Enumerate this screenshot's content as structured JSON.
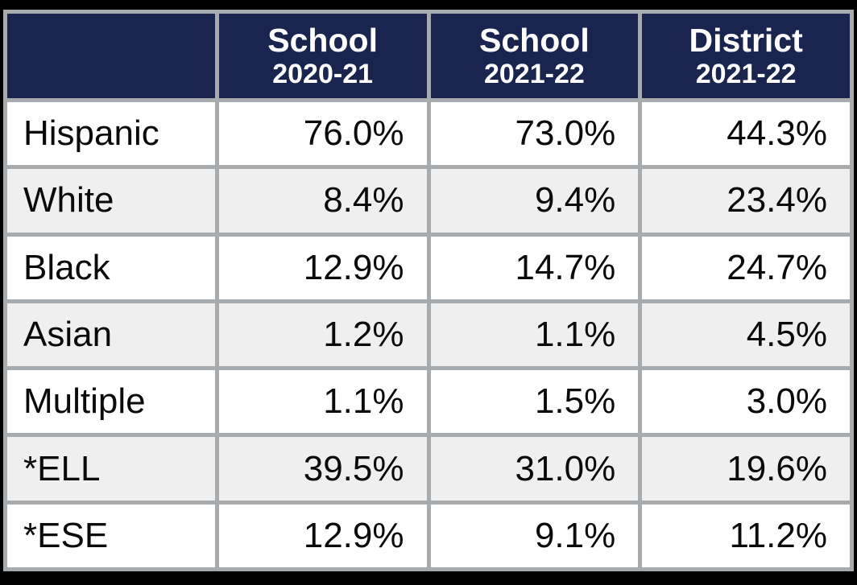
{
  "colors": {
    "header_background": "#1a254f",
    "header_text": "#ffffff",
    "grid_border": "#a8abad",
    "stripe_row_background": "#efefef",
    "plain_row_background": "#ffffff",
    "body_text": "#0a0a0a",
    "outer_frame": "#000000"
  },
  "table": {
    "corner_label": "",
    "columns": [
      {
        "title": "School",
        "year": "2020-21"
      },
      {
        "title": "School",
        "year": "2021-22"
      },
      {
        "title": "District",
        "year": "2021-22"
      }
    ],
    "rows": [
      {
        "label": "Hispanic",
        "values": [
          "76.0%",
          "73.0%",
          "44.3%"
        ]
      },
      {
        "label": "White",
        "values": [
          "8.4%",
          "9.4%",
          "23.4%"
        ]
      },
      {
        "label": "Black",
        "values": [
          "12.9%",
          "14.7%",
          "24.7%"
        ]
      },
      {
        "label": "Asian",
        "values": [
          "1.2%",
          "1.1%",
          "4.5%"
        ]
      },
      {
        "label": "Multiple",
        "values": [
          "1.1%",
          "1.5%",
          "3.0%"
        ]
      },
      {
        "label": "*ELL",
        "values": [
          "39.5%",
          "31.0%",
          "19.6%"
        ]
      },
      {
        "label": "*ESE",
        "values": [
          "12.9%",
          "9.1%",
          "11.2%"
        ]
      }
    ]
  },
  "chart_data": {
    "type": "table",
    "title": "School demographics percentages by group",
    "categories": [
      "Hispanic",
      "White",
      "Black",
      "Asian",
      "Multiple",
      "*ELL",
      "*ESE"
    ],
    "series": [
      {
        "name": "School 2020-21",
        "values": [
          76.0,
          8.4,
          12.9,
          1.2,
          1.1,
          39.5,
          12.9
        ]
      },
      {
        "name": "School 2021-22",
        "values": [
          73.0,
          9.4,
          14.7,
          1.1,
          1.5,
          31.0,
          9.1
        ]
      },
      {
        "name": "District 2021-22",
        "values": [
          44.3,
          23.4,
          24.7,
          4.5,
          3.0,
          19.6,
          11.2
        ]
      }
    ],
    "unit": "%"
  }
}
